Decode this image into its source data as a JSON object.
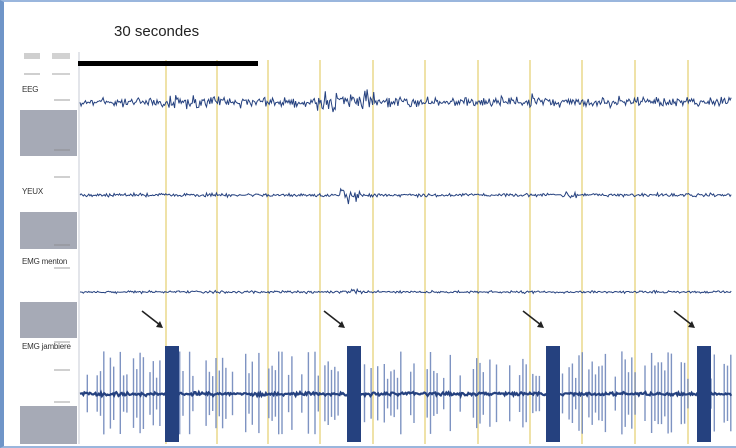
{
  "time_scale_label": "30 secondes",
  "colors": {
    "trace": "#25417f",
    "trace_light": "#7e93c2",
    "grid": "#efe2a8",
    "scale_box": "#a6aab6",
    "frame": "#6f95c8"
  },
  "chart_data": {
    "type": "line",
    "title": "",
    "time_scale_bar": "30 secondes",
    "vertical_grid": true,
    "vertical_grid_lines": 12,
    "channels": [
      {
        "name": "EEG"
      },
      {
        "name": "YEUX"
      },
      {
        "name": "EMG menton"
      },
      {
        "name": "EMG jambiere"
      }
    ],
    "event_markers": {
      "type": "arrow",
      "channel": "EMG jambiere",
      "count": 4
    }
  }
}
